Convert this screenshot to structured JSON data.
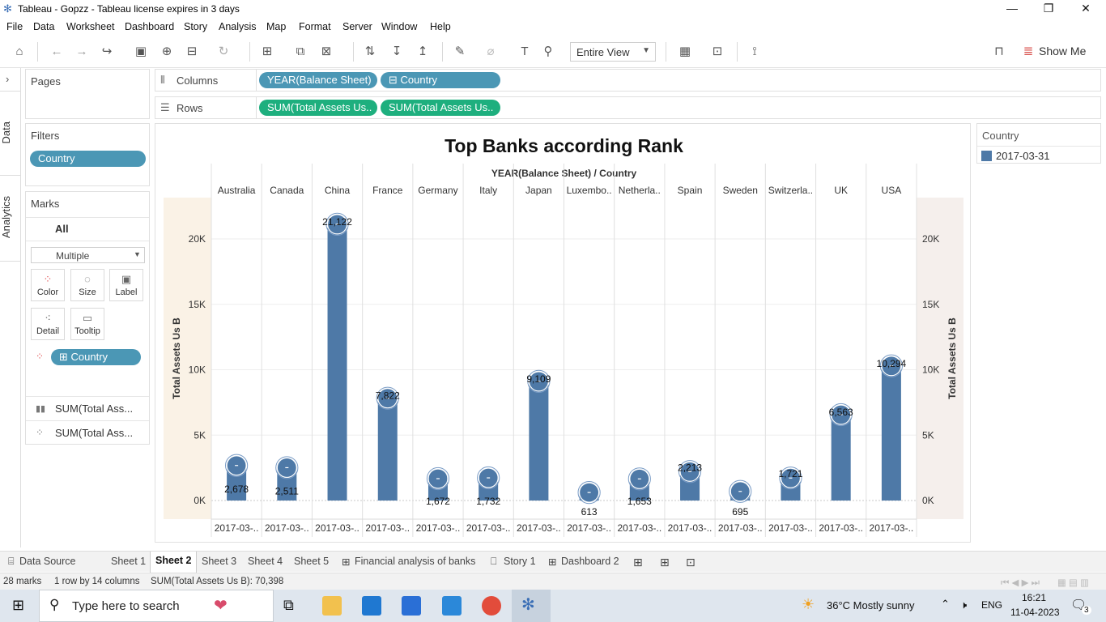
{
  "window": {
    "title": "Tableau - Gopzz - Tableau license expires in 3 days",
    "minimize": "—",
    "restore": "❐",
    "close": "✕"
  },
  "menu": [
    "File",
    "Data",
    "Worksheet",
    "Dashboard",
    "Story",
    "Analysis",
    "Map",
    "Format",
    "Server",
    "Window",
    "Help"
  ],
  "toolbar": {
    "fit_value": "Entire View",
    "show_me": "Show Me"
  },
  "side_tabs": {
    "data": "Data",
    "analytics": "Analytics"
  },
  "pages": {
    "title": "Pages"
  },
  "filters": {
    "title": "Filters",
    "pill": "Country"
  },
  "marks": {
    "title": "Marks",
    "all": "All",
    "type": "Multiple",
    "buttons": {
      "color": "Color",
      "size": "Size",
      "label": "Label",
      "detail": "Detail",
      "tooltip": "Tooltip"
    },
    "country_pill": "Country",
    "measure1": "SUM(Total Ass...",
    "measure2": "SUM(Total Ass..."
  },
  "shelves": {
    "columns_label": "Columns",
    "rows_label": "Rows",
    "columns": [
      "YEAR(Balance Sheet)",
      "Country"
    ],
    "rows": [
      "SUM(Total Assets Us..",
      "SUM(Total Assets Us.."
    ]
  },
  "legend": {
    "title": "Country",
    "item": "2017-03-31",
    "color": "#4e79a7"
  },
  "chart_data": {
    "type": "bar",
    "title": "Top Banks according Rank",
    "header": "YEAR(Balance Sheet)  /  Country",
    "categories": [
      "Australia",
      "Canada",
      "China",
      "France",
      "Germany",
      "Italy",
      "Japan",
      "Luxembo..",
      "Netherla..",
      "Spain",
      "Sweden",
      "Switzerla..",
      "UK",
      "USA"
    ],
    "x_labels": [
      "2017-03-..",
      "2017-03-..",
      "2017-03-..",
      "2017-03-..",
      "2017-03-..",
      "2017-03-..",
      "2017-03-..",
      "2017-03-..",
      "2017-03-..",
      "2017-03-..",
      "2017-03-..",
      "2017-03-..",
      "2017-03-..",
      "2017-03-.."
    ],
    "values": [
      2678,
      2511,
      21122,
      7822,
      1672,
      1732,
      9109,
      613,
      1653,
      2213,
      695,
      1721,
      6563,
      10294
    ],
    "labels": [
      "2,678",
      "2,511",
      "21,122",
      "7,822",
      "1,672",
      "1,732",
      "9,109",
      "613",
      "1,653",
      "2,213",
      "695",
      "1,721",
      "6,563",
      "10,294"
    ],
    "ylabel": "Total Assets Us B",
    "ylabel_right": "Total Assets Us B",
    "yticks": [
      "0K",
      "5K",
      "10K",
      "15K",
      "20K"
    ],
    "ylim": [
      0,
      22500
    ],
    "series_color": "#4e79a7",
    "dual_axis": true
  },
  "sheet_tabs": {
    "data_source": "Data Source",
    "sheets": [
      "Sheet 1",
      "Sheet 2",
      "Sheet 3",
      "Sheet 4",
      "Sheet 5"
    ],
    "active": "Sheet 2",
    "financial": "Financial analysis of banks",
    "story": "Story 1",
    "dashboard": "Dashboard 2"
  },
  "status": {
    "marks": "28 marks",
    "rows_cols": "1 row by 14 columns",
    "sum": "SUM(Total Assets Us B): 70,398"
  },
  "taskbar": {
    "search_placeholder": "Type here to search",
    "weather": "36°C  Mostly sunny",
    "lang": "ENG",
    "time": "16:21",
    "date": "11-04-2023",
    "notif_count": "3"
  }
}
